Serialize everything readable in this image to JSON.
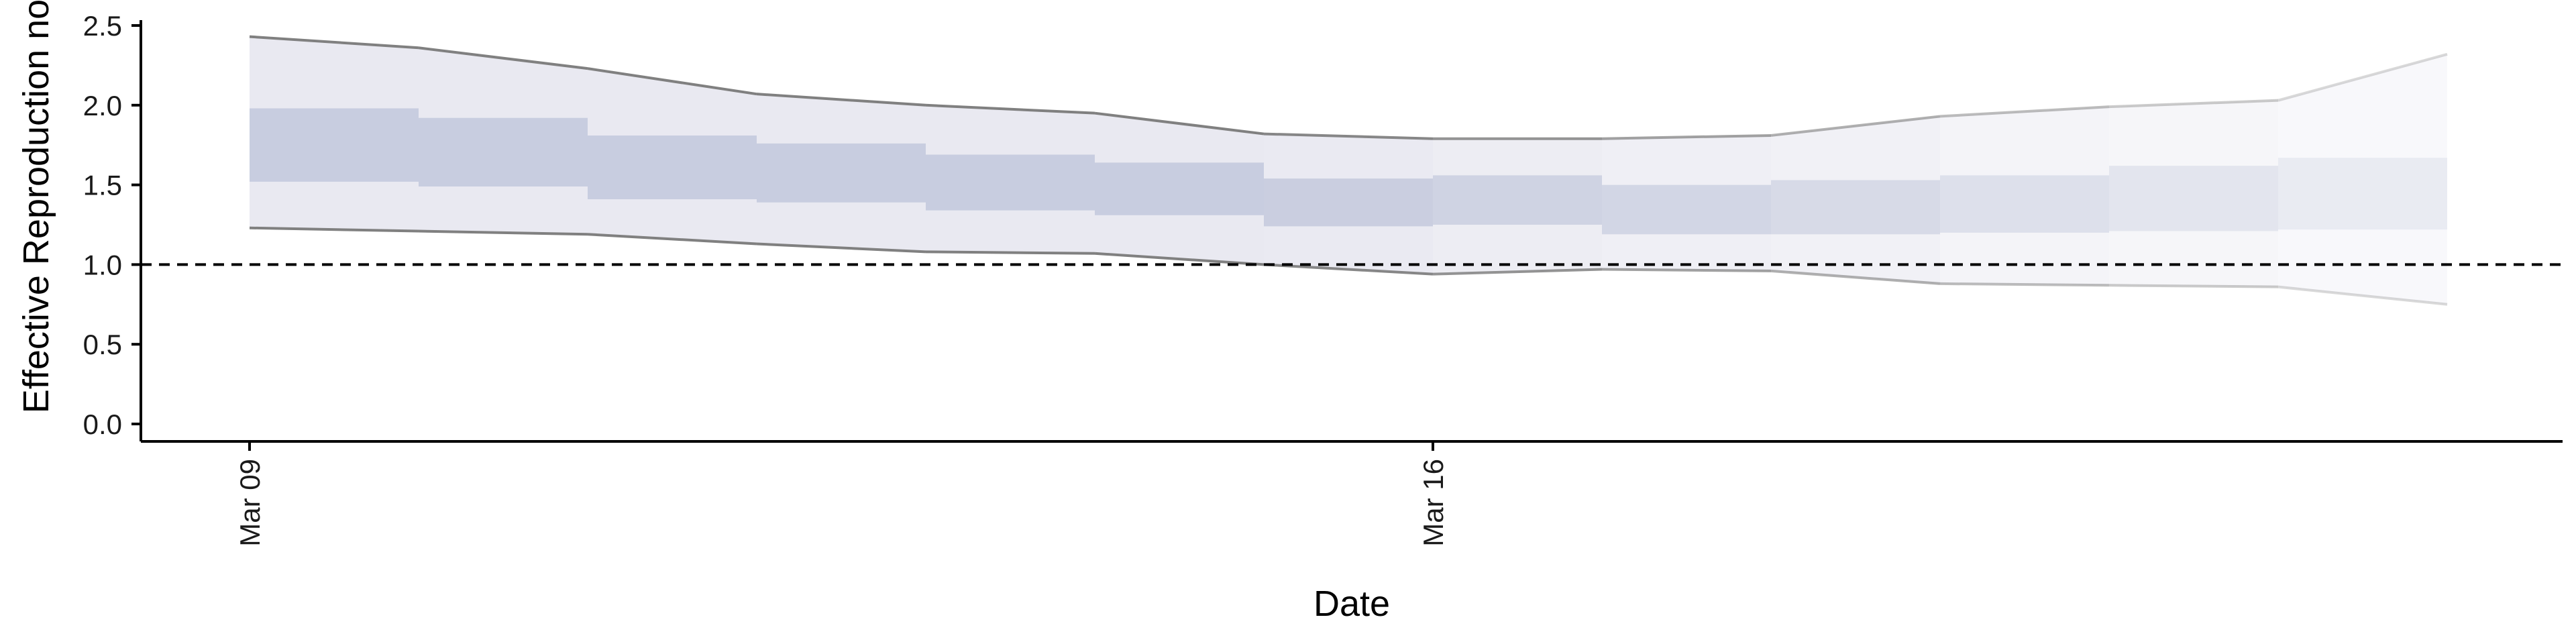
{
  "chart_data": {
    "type": "area",
    "title": "",
    "xlabel": "Date",
    "ylabel": "Effective Reproduction no.",
    "ylim": [
      0,
      2.5
    ],
    "y_ticks": [
      "0.0",
      "0.5",
      "1.0",
      "1.5",
      "2.0",
      "2.5"
    ],
    "x_ticks": [
      {
        "date": "2020-03-09",
        "label": "Mar 09"
      },
      {
        "date": "2020-03-16",
        "label": "Mar 16"
      }
    ],
    "reference_line": {
      "y": 1.0,
      "style": "dashed"
    },
    "grid": false,
    "legend": "none",
    "x": [
      "2020-03-09",
      "2020-03-10",
      "2020-03-11",
      "2020-03-12",
      "2020-03-13",
      "2020-03-14",
      "2020-03-15",
      "2020-03-16",
      "2020-03-17",
      "2020-03-18",
      "2020-03-19",
      "2020-03-20",
      "2020-03-21",
      "2020-03-22"
    ],
    "outer_upper": [
      2.43,
      2.36,
      2.23,
      2.07,
      2.0,
      1.95,
      1.82,
      1.79,
      1.79,
      1.81,
      1.93,
      1.99,
      2.03,
      2.32
    ],
    "outer_lower": [
      1.23,
      1.21,
      1.19,
      1.13,
      1.08,
      1.07,
      1.0,
      0.94,
      0.97,
      0.96,
      0.88,
      0.87,
      0.86,
      0.75
    ],
    "inner_upper": [
      1.98,
      1.92,
      1.81,
      1.76,
      1.69,
      1.64,
      1.54,
      1.56,
      1.5,
      1.53,
      1.56,
      1.62,
      1.67,
      1.75
    ],
    "inner_lower": [
      1.52,
      1.49,
      1.41,
      1.39,
      1.34,
      1.31,
      1.24,
      1.25,
      1.19,
      1.19,
      1.2,
      1.21,
      1.22,
      1.23
    ],
    "colors": {
      "outer_band": "#e9e9f1",
      "inner_band": "#c6cbde",
      "bound_line": "#808080",
      "axis": "#000000",
      "reference_line": "#000000"
    }
  }
}
